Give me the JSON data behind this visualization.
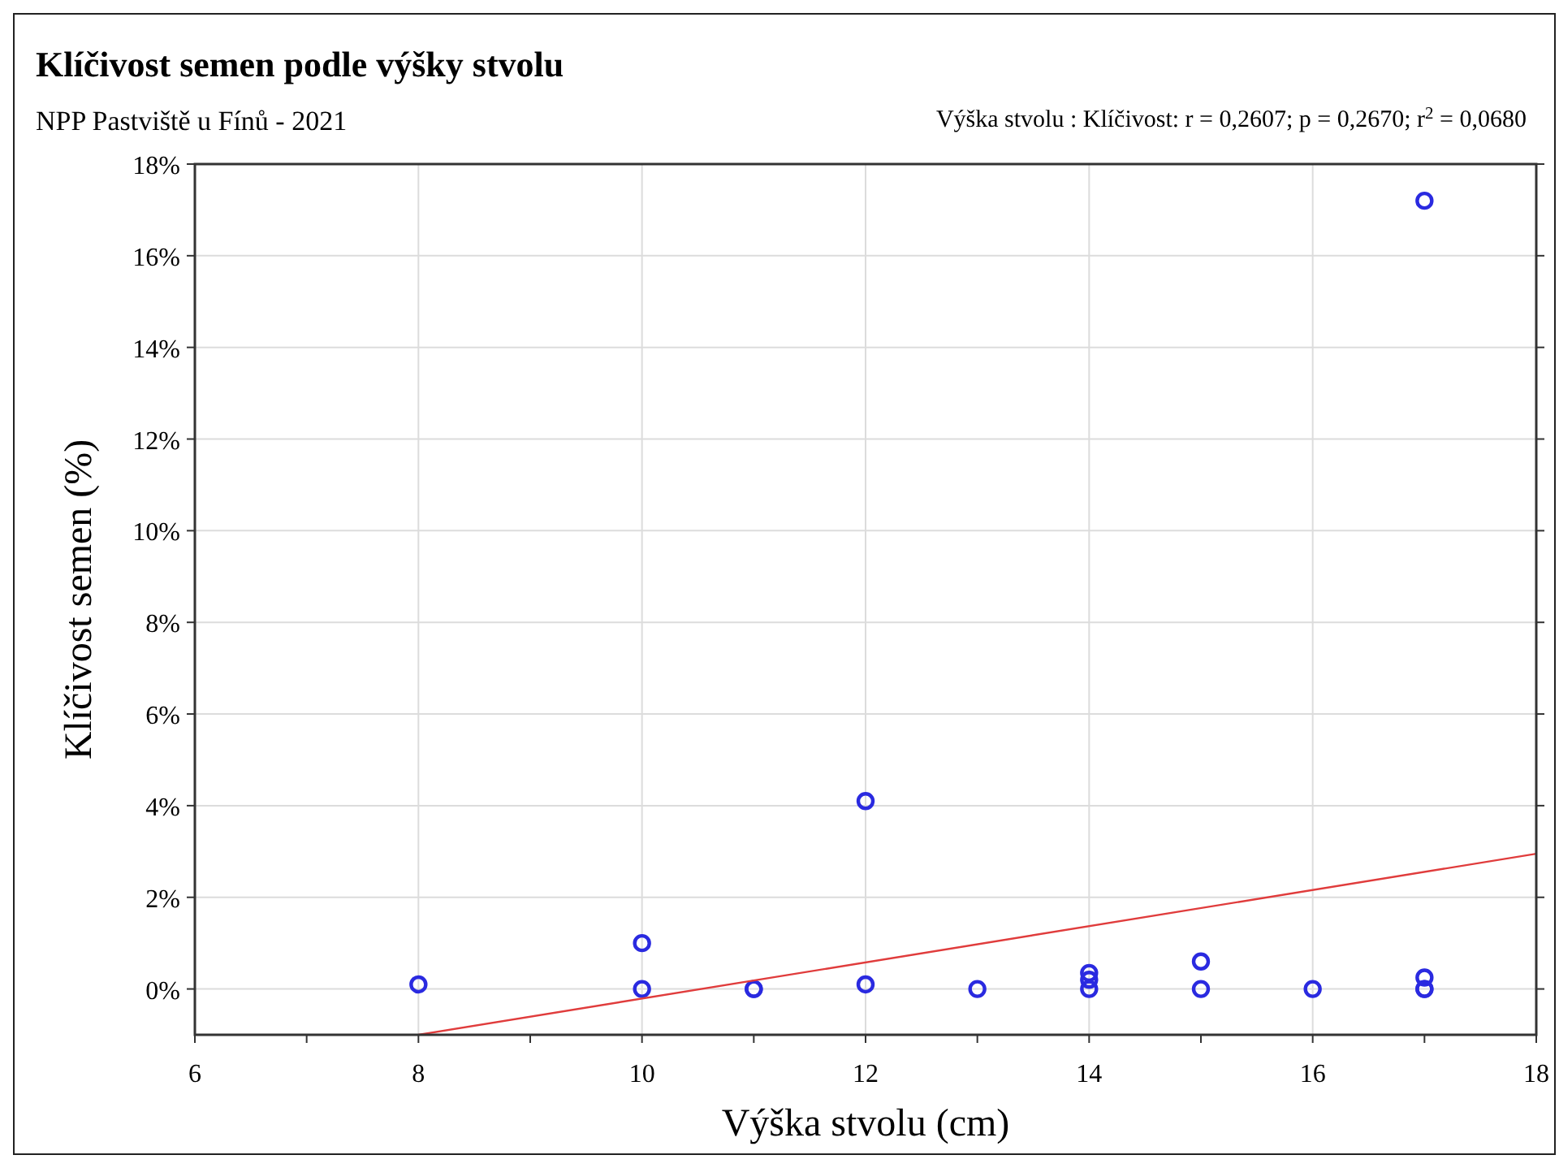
{
  "chart_data": {
    "type": "scatter",
    "title": "Klíčivost semen podle výšky stvolu",
    "subtitle": "NPP Pastviště u Fínů - 2021",
    "annotations": [
      "Výška stvolu : Klíčivost: r = 0,2607; p = 0,2670; r$^{2}$ = 0,0680"
    ],
    "xlabel": "Výška stvolu (cm)",
    "ylabel": "Klíčivost semen (%)",
    "xlim": [
      6,
      18
    ],
    "xticks": [
      6,
      {
        "value": 7,
        "label": null
      },
      8,
      {
        "value": 9,
        "label": null
      },
      10,
      {
        "value": 11,
        "label": null
      },
      12,
      {
        "value": 13,
        "label": null
      },
      14,
      {
        "value": 15,
        "label": null
      },
      16,
      {
        "value": 17,
        "label": null
      },
      18
    ],
    "ylim": [
      -1,
      18
    ],
    "yticks": [
      {
        "value": 0,
        "label": "0%"
      },
      {
        "value": 2,
        "label": "2%"
      },
      {
        "value": 4,
        "label": "4%"
      },
      {
        "value": 6,
        "label": "6%"
      },
      {
        "value": 8,
        "label": "8%"
      },
      {
        "value": 10,
        "label": "10%"
      },
      {
        "value": 12,
        "label": "12%"
      },
      {
        "value": 14,
        "label": "14%"
      },
      {
        "value": 16,
        "label": "16%"
      },
      {
        "value": 18,
        "label": "18%"
      }
    ],
    "grid": true,
    "marker": "circle",
    "series": [
      {
        "color": "#2a2ae0",
        "x": [
          8,
          10,
          10,
          11,
          11,
          12,
          12,
          13,
          14,
          14,
          14,
          15,
          15,
          16,
          17,
          17,
          17,
          17
        ],
        "values": [
          0.1,
          1.0,
          0,
          0,
          0,
          4.1,
          0.1,
          0,
          0.35,
          0.2,
          0,
          0.6,
          0,
          0,
          17.2,
          0.25,
          0,
          0
        ]
      },
      {
        "type": "line",
        "color": "#e03c3c",
        "marker": "none",
        "x": [
          8,
          18
        ],
        "values": [
          -1,
          2.95
        ]
      }
    ]
  }
}
